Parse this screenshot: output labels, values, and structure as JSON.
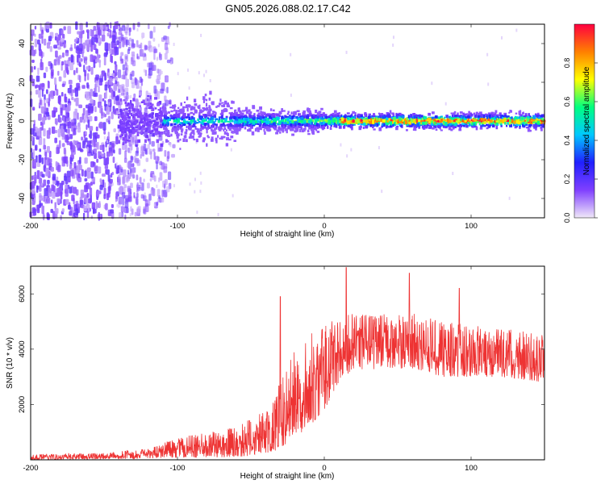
{
  "title": "GN05.2026.088.02.17.C42",
  "colors": {
    "snr_line": "#ee3333",
    "axis": "#000000",
    "colormap": [
      "#f0e8f8",
      "#8040ff",
      "#2020ff",
      "#00c8ff",
      "#00ff80",
      "#ffff00",
      "#ff8000",
      "#ff0040"
    ]
  },
  "chart_data": [
    {
      "type": "heatmap",
      "name": "spectrogram",
      "title": "GN05.2026.088.02.17.C42",
      "xlabel": "Height of straight line (km)",
      "ylabel": "Frequency (Hz)",
      "xlim": [
        -200,
        150
      ],
      "ylim": [
        -50,
        50
      ],
      "xticks": [
        -200,
        -100,
        0,
        100
      ],
      "yticks": [
        -40,
        -20,
        0,
        20,
        40
      ],
      "colorbar": {
        "label": "Normalized spectral amplitude",
        "range": [
          0,
          1
        ],
        "ticks": [
          "0.0",
          "0.2",
          "0.4",
          "0.6",
          "0.8"
        ]
      },
      "description_values": {
        "noise_region_x": [
          -200,
          -110
        ],
        "signal_line_frequency_hz": 0,
        "signal_start_x": -130
      }
    },
    {
      "type": "line",
      "name": "snr",
      "xlabel": "Height of straight line (km)",
      "ylabel": "SNR (10 * v/v)",
      "xlim": [
        -200,
        150
      ],
      "ylim": [
        0,
        7000
      ],
      "xticks": [
        -200,
        -100,
        0,
        100
      ],
      "yticks": [
        2000,
        4000,
        6000
      ],
      "envelope": {
        "x": [
          -200,
          -150,
          -120,
          -100,
          -80,
          -60,
          -40,
          -30,
          -20,
          -10,
          0,
          10,
          20,
          40,
          60,
          80,
          100,
          120,
          150
        ],
        "low": [
          0,
          20,
          50,
          80,
          80,
          100,
          200,
          400,
          800,
          1200,
          1800,
          2800,
          3200,
          3300,
          3300,
          3000,
          3000,
          3000,
          2800
        ],
        "high": [
          200,
          250,
          400,
          800,
          1000,
          1200,
          1800,
          2800,
          4000,
          4600,
          5000,
          5200,
          5300,
          5300,
          5300,
          5000,
          4900,
          4800,
          4600
        ]
      },
      "peaks": [
        {
          "x": -30,
          "y": 5900
        },
        {
          "x": 15,
          "y": 6950
        },
        {
          "x": 58,
          "y": 6750
        },
        {
          "x": 92,
          "y": 6200
        }
      ]
    }
  ]
}
